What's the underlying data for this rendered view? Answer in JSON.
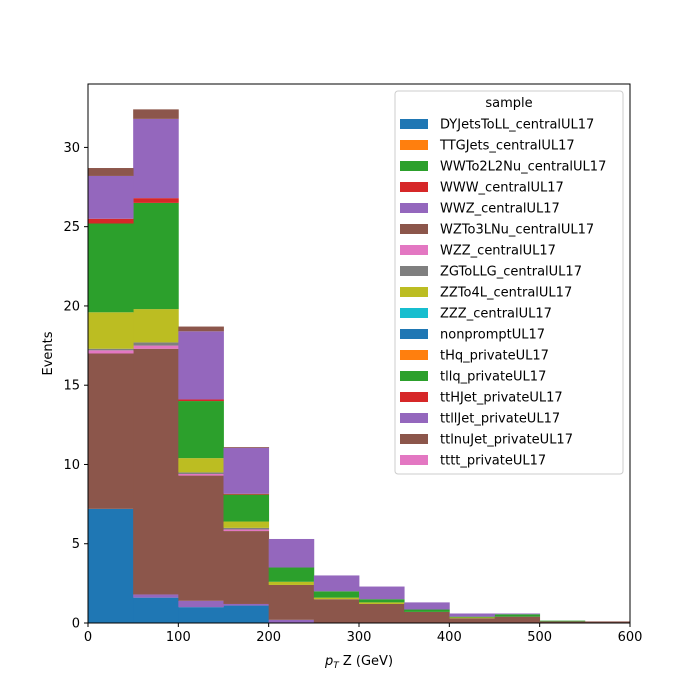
{
  "chart_data": {
    "type": "bar",
    "stacked": true,
    "title": "",
    "xlabel_main": "p",
    "xlabel_sub": "T",
    "xlabel_rest": " Z (GeV)",
    "ylabel": "Events",
    "xlim": [
      0,
      600
    ],
    "ylim": [
      0,
      34
    ],
    "xticks": [
      "0",
      "100",
      "200",
      "300",
      "400",
      "500",
      "600"
    ],
    "xtick_values": [
      0,
      100,
      200,
      300,
      400,
      500,
      600
    ],
    "yticks": [
      "0",
      "5",
      "10",
      "15",
      "20",
      "25",
      "30"
    ],
    "ytick_values": [
      0,
      5,
      10,
      15,
      20,
      25,
      30
    ],
    "grid": false,
    "legend_placement": "top-right",
    "legend_title": "sample",
    "bin_edges": [
      0,
      50,
      100,
      150,
      200,
      250,
      300,
      350,
      400,
      450,
      500,
      550,
      600
    ],
    "series": [
      {
        "name": "DYJetsToLL_centralUL17",
        "color": "#1f77b4",
        "values": [
          0,
          0,
          0,
          0,
          0,
          0,
          0,
          0,
          0,
          0,
          0,
          0
        ]
      },
      {
        "name": "TTGJets_centralUL17",
        "color": "#ff7f0e",
        "values": [
          0,
          0,
          0,
          0,
          0,
          0,
          0,
          0,
          0,
          0,
          0,
          0
        ]
      },
      {
        "name": "WWTo2L2Nu_centralUL17",
        "color": "#2ca02c",
        "values": [
          0,
          0,
          0,
          0,
          0,
          0,
          0,
          0,
          0,
          0,
          0,
          0
        ]
      },
      {
        "name": "WWW_centralUL17",
        "color": "#d62728",
        "values": [
          0,
          0,
          0,
          0,
          0,
          0,
          0,
          0,
          0,
          0,
          0,
          0
        ]
      },
      {
        "name": "WWZ_centralUL17",
        "color": "#9467bd",
        "values": [
          0,
          0,
          0,
          0,
          0,
          0,
          0,
          0,
          0,
          0,
          0,
          0
        ]
      },
      {
        "name": "WZTo3LNu_centralUL17",
        "color": "#8c564b",
        "values": [
          0,
          0,
          0,
          0,
          0,
          0,
          0,
          0,
          0,
          0,
          0,
          0
        ]
      },
      {
        "name": "WZZ_centralUL17",
        "color": "#e377c2",
        "values": [
          0,
          0,
          0,
          0,
          0,
          0,
          0,
          0,
          0,
          0,
          0,
          0
        ]
      },
      {
        "name": "ZGToLLG_centralUL17",
        "color": "#7f7f7f",
        "values": [
          0,
          0,
          0,
          0,
          0,
          0,
          0,
          0,
          0,
          0,
          0,
          0
        ]
      },
      {
        "name": "ZZTo4L_centralUL17",
        "color": "#bcbd22",
        "values": [
          0,
          0,
          0,
          0,
          0,
          0,
          0,
          0,
          0,
          0,
          0,
          0
        ]
      },
      {
        "name": "ZZZ_centralUL17",
        "color": "#17becf",
        "values": [
          0,
          0,
          0,
          0,
          0,
          0,
          0,
          0,
          0,
          0,
          0,
          0
        ]
      },
      {
        "name": "nonpromptUL17",
        "color": "#1f77b4",
        "values": [
          7.2,
          1.6,
          1.0,
          1.1,
          0,
          0,
          0,
          0,
          0,
          0,
          0,
          0
        ]
      },
      {
        "name": "tHq_privateUL17",
        "color": "#ff7f0e",
        "values": [
          0,
          0,
          0,
          0,
          0,
          0,
          0,
          0,
          0,
          0,
          0,
          0
        ]
      },
      {
        "name": "tllq_privateUL17",
        "color": "#2ca02c",
        "values": [
          0,
          0,
          0,
          0,
          0,
          0,
          0,
          0,
          0,
          0,
          0,
          0
        ]
      },
      {
        "name": "ttHJet_privateUL17",
        "color": "#d62728",
        "values": [
          0,
          0,
          0,
          0,
          0,
          0,
          0,
          0,
          0,
          0,
          0,
          0
        ]
      },
      {
        "name": "ttllJet_privateUL17",
        "color": "#9467bd",
        "values": [
          0,
          0.2,
          0.4,
          0.1,
          0.2,
          0,
          0,
          0,
          0,
          0,
          0,
          0
        ]
      },
      {
        "name": "ttlnuJet_privateUL17",
        "color": "#8c564b",
        "values": [
          9.8,
          15.5,
          7.9,
          4.6,
          2.2,
          1.5,
          1.2,
          0.7,
          0.3,
          0.4,
          0.1,
          0.1
        ]
      },
      {
        "name": "tttt_privateUL17",
        "color": "#e377c2",
        "values": [
          0.2,
          0.2,
          0.1,
          0.1,
          0,
          0,
          0,
          0,
          0,
          0,
          0,
          0
        ]
      },
      {
        "name": "ZGToLLG_centralUL17",
        "color": "#7f7f7f",
        "values": [
          0.1,
          0.2,
          0.1,
          0.1,
          0,
          0,
          0,
          0,
          0,
          0,
          0,
          0
        ]
      },
      {
        "name": "ZZTo4L_centralUL17",
        "color": "#bcbd22",
        "values": [
          2.3,
          2.1,
          0.9,
          0.4,
          0.2,
          0.1,
          0.1,
          0,
          0.05,
          0,
          0,
          0
        ]
      },
      {
        "name": "WWTo2L2Nu_centralUL17",
        "color": "#2ca02c",
        "values": [
          5.6,
          6.7,
          3.6,
          1.7,
          0.9,
          0.4,
          0.2,
          0.15,
          0.05,
          0.15,
          0.05,
          0
        ]
      },
      {
        "name": "WWW_centralUL17",
        "color": "#d62728",
        "values": [
          0.3,
          0.3,
          0.1,
          0.05,
          0,
          0,
          0,
          0,
          0,
          0,
          0,
          0
        ]
      },
      {
        "name": "WWZ_centralUL17",
        "color": "#9467bd",
        "values": [
          2.7,
          5.0,
          4.3,
          2.9,
          1.8,
          1.0,
          0.8,
          0.45,
          0.2,
          0.05,
          0,
          0
        ]
      },
      {
        "name": "WZTo3LNu_centralUL17",
        "color": "#8c564b",
        "values": [
          0.5,
          0.6,
          0.3,
          0.05,
          0,
          0,
          0,
          0,
          0,
          0,
          0,
          0
        ]
      }
    ]
  }
}
